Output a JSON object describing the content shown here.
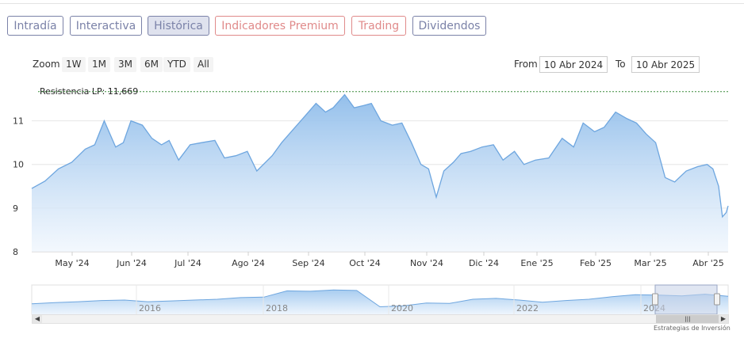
{
  "tabs": [
    {
      "label": "Intradía",
      "color": "#7b82a8",
      "active": false
    },
    {
      "label": "Interactiva",
      "color": "#7b82a8",
      "active": false
    },
    {
      "label": "Histórica",
      "color": "#7b82a8",
      "active": true
    },
    {
      "label": "Indicadores Premium",
      "color": "#e08a8a",
      "active": false
    },
    {
      "label": "Trading",
      "color": "#e08a8a",
      "active": false
    },
    {
      "label": "Dividendos",
      "color": "#7b82a8",
      "active": false
    }
  ],
  "zoom": {
    "label": "Zoom",
    "buttons": [
      "1W",
      "1M",
      "3M",
      "6M",
      "YTD",
      "All"
    ]
  },
  "range": {
    "from_label": "From",
    "from_value": "10 Abr 2024",
    "to_label": "To",
    "to_value": "10 Abr 2025"
  },
  "credit": "Estrategias de Inversión",
  "colors": {
    "line": "#6ea6df",
    "fill_top": "#8ebcea",
    "fill_bottom": "#eef5fd",
    "resistance": "#3a8a3a",
    "navigator_mask": "#c7d2e8"
  },
  "chart_data": {
    "type": "area",
    "y_ticks": [
      "8",
      "9",
      "10",
      "11"
    ],
    "ylim": [
      8,
      11.9
    ],
    "x_ticks": [
      "May '24",
      "Jun '24",
      "Jul '24",
      "Ago '24",
      "Sep '24",
      "Oct '24",
      "Nov '24",
      "Dic '24",
      "Ene '25",
      "Feb '25",
      "Mar '25",
      "Abr '25"
    ],
    "annotation": {
      "label": "Resistencia LP: 11,669",
      "value": 11.669
    },
    "series": [
      {
        "x": [
          "2024-04-10",
          "2024-04-17",
          "2024-04-24",
          "2024-05-01",
          "2024-05-08",
          "2024-05-13",
          "2024-05-18",
          "2024-05-24",
          "2024-05-28",
          "2024-06-01",
          "2024-06-07",
          "2024-06-12",
          "2024-06-17",
          "2024-06-21",
          "2024-06-26",
          "2024-07-02",
          "2024-07-08",
          "2024-07-15",
          "2024-07-20",
          "2024-07-26",
          "2024-08-01",
          "2024-08-06",
          "2024-08-14",
          "2024-08-19",
          "2024-08-25",
          "2024-08-30",
          "2024-09-06",
          "2024-09-11",
          "2024-09-15",
          "2024-09-21",
          "2024-09-26",
          "2024-10-01",
          "2024-10-05",
          "2024-10-10",
          "2024-10-16",
          "2024-10-21",
          "2024-10-26",
          "2024-10-31",
          "2024-11-04",
          "2024-11-08",
          "2024-11-12",
          "2024-11-17",
          "2024-11-21",
          "2024-11-26",
          "2024-12-02",
          "2024-12-08",
          "2024-12-13",
          "2024-12-19",
          "2024-12-24",
          "2024-12-30",
          "2025-01-06",
          "2025-01-13",
          "2025-01-19",
          "2025-01-24",
          "2025-01-30",
          "2025-02-04",
          "2025-02-10",
          "2025-02-16",
          "2025-02-21",
          "2025-02-26",
          "2025-03-03",
          "2025-03-08",
          "2025-03-13",
          "2025-03-19",
          "2025-03-25",
          "2025-03-30",
          "2025-04-02",
          "2025-04-05",
          "2025-04-07",
          "2025-04-09",
          "2025-04-10"
        ],
        "values": [
          9.45,
          9.62,
          9.9,
          10.05,
          10.35,
          10.45,
          11.0,
          10.4,
          10.5,
          11.0,
          10.9,
          10.6,
          10.45,
          10.55,
          10.1,
          10.45,
          10.5,
          10.55,
          10.15,
          10.2,
          10.3,
          9.85,
          10.2,
          10.5,
          10.8,
          11.05,
          11.4,
          11.2,
          11.3,
          11.6,
          11.3,
          11.35,
          11.4,
          11.0,
          10.9,
          10.95,
          10.5,
          10.0,
          9.9,
          9.25,
          9.85,
          10.05,
          10.25,
          10.3,
          10.4,
          10.45,
          10.1,
          10.3,
          10.0,
          10.1,
          10.15,
          10.6,
          10.4,
          10.95,
          10.75,
          10.85,
          11.2,
          11.05,
          10.95,
          10.7,
          10.5,
          9.7,
          9.6,
          9.85,
          9.95,
          10.0,
          9.9,
          9.5,
          8.8,
          8.9,
          9.05
        ]
      }
    ],
    "navigator": {
      "x_ticks": [
        "2016",
        "2018",
        "2020",
        "2022",
        "2024"
      ],
      "values": [
        6.5,
        6.8,
        7.0,
        7.3,
        7.4,
        7.0,
        7.2,
        7.4,
        7.6,
        8.0,
        8.1,
        9.6,
        9.5,
        9.8,
        9.7,
        5.8,
        6.0,
        6.7,
        6.6,
        7.6,
        7.8,
        7.4,
        6.9,
        7.3,
        7.6,
        8.2,
        8.7,
        8.6,
        8.4,
        8.8,
        8.3
      ]
    }
  }
}
